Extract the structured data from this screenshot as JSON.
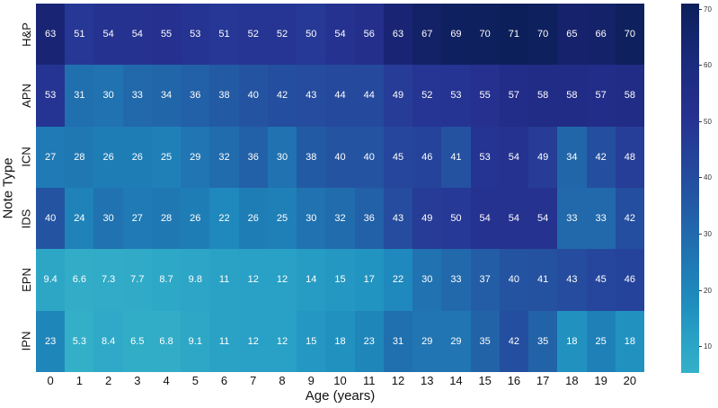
{
  "chart_data": {
    "type": "heatmap",
    "title": "",
    "xlabel": "Age (years)",
    "ylabel": "Note Type",
    "x": [
      "0",
      "1",
      "2",
      "3",
      "4",
      "5",
      "6",
      "7",
      "8",
      "9",
      "10",
      "11",
      "12",
      "13",
      "14",
      "15",
      "16",
      "17",
      "18",
      "19",
      "20"
    ],
    "y": [
      "H&P",
      "APN",
      "ICN",
      "IDS",
      "EPN",
      "IPN"
    ],
    "values": [
      [
        63,
        51,
        54,
        54,
        55,
        53,
        51,
        52,
        52,
        50,
        54,
        56,
        63,
        67,
        69,
        70,
        71,
        70,
        65,
        66,
        70
      ],
      [
        53,
        31,
        30,
        33,
        34,
        36,
        38,
        40,
        42,
        43,
        44,
        44,
        49,
        52,
        53,
        55,
        57,
        58,
        58,
        57,
        58
      ],
      [
        27,
        28,
        26,
        26,
        25,
        29,
        32,
        36,
        30,
        38,
        40,
        40,
        45,
        46,
        41,
        53,
        54,
        49,
        34,
        42,
        48
      ],
      [
        40,
        24,
        30,
        27,
        28,
        26,
        22,
        26,
        25,
        30,
        32,
        36,
        43,
        49,
        50,
        54,
        54,
        54,
        33,
        33,
        42
      ],
      [
        9.4,
        6.6,
        7.3,
        7.7,
        8.7,
        9.8,
        11,
        12,
        12,
        14,
        15,
        17,
        22,
        30,
        33,
        37,
        40,
        41,
        43,
        45,
        46
      ],
      [
        23,
        5.3,
        8.4,
        6.5,
        6.8,
        9.1,
        11,
        12,
        12,
        15,
        18,
        23,
        31,
        29,
        29,
        35,
        42,
        35,
        18,
        25,
        18
      ]
    ],
    "colorbar": {
      "ticks": [
        10,
        20,
        30,
        40,
        50,
        60,
        70
      ],
      "range": [
        5.3,
        71
      ],
      "colormap": "YlGnBu (blue range)",
      "low_color": "#35b0c8",
      "high_color": "#0c1f5a"
    },
    "grid": false,
    "legend_position": "right"
  }
}
